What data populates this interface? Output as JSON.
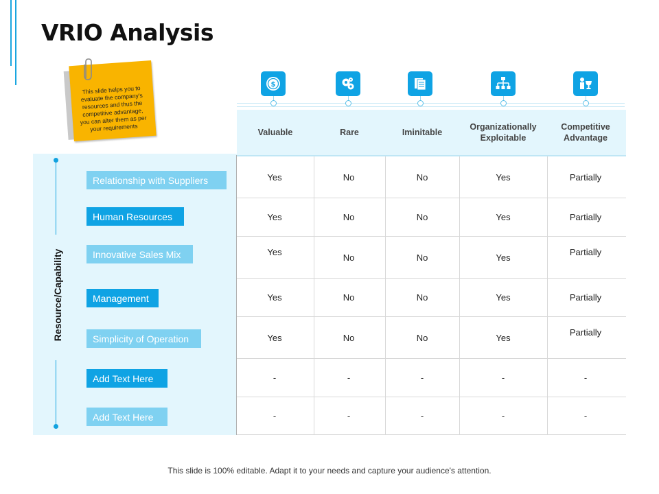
{
  "title": "VRIO Analysis",
  "note": {
    "text": "This slide helps you to evaluate the company's resources and thus the competitive advantage, you can alter them as per your requirements"
  },
  "icons": [
    "dollar-coin-icon",
    "gears-icon",
    "documents-icon",
    "org-chart-icon",
    "trophy-person-icon"
  ],
  "columns": [
    "Valuable",
    "Rare",
    "Iminitable",
    "Organizationally Exploitable",
    "Competitive Advantage"
  ],
  "axis_label": "Resource/Capability",
  "rows": [
    {
      "label": "Relationship with Suppliers",
      "style": "light",
      "values": [
        "Yes",
        "No",
        "No",
        "Yes",
        "Partially"
      ]
    },
    {
      "label": "Human Resources",
      "style": "dark",
      "values": [
        "Yes",
        "No",
        "No",
        "Yes",
        "Partially"
      ]
    },
    {
      "label": "Innovative  Sales Mix",
      "style": "light",
      "values": [
        "Yes",
        "No",
        "No",
        "Yes",
        "Partially"
      ]
    },
    {
      "label": "Management",
      "style": "dark",
      "values": [
        "Yes",
        "No",
        "No",
        "Yes",
        "Partially"
      ]
    },
    {
      "label": "Simplicity of Operation",
      "style": "light",
      "values": [
        "Yes",
        "No",
        "No",
        "Yes",
        "Partially"
      ]
    },
    {
      "label": "Add Text Here",
      "style": "dark",
      "values": [
        "-",
        "-",
        "-",
        "-",
        "-"
      ]
    },
    {
      "label": "Add Text Here",
      "style": "light",
      "values": [
        "-",
        "-",
        "-",
        "-",
        "-"
      ]
    }
  ],
  "footer": "This slide is 100% editable. Adapt it to your needs and capture your audience's attention.",
  "colors": {
    "accent": "#0fa3e4",
    "light_accent": "#7fd1f1",
    "panel": "#e3f6fd",
    "note": "#f9b400"
  }
}
